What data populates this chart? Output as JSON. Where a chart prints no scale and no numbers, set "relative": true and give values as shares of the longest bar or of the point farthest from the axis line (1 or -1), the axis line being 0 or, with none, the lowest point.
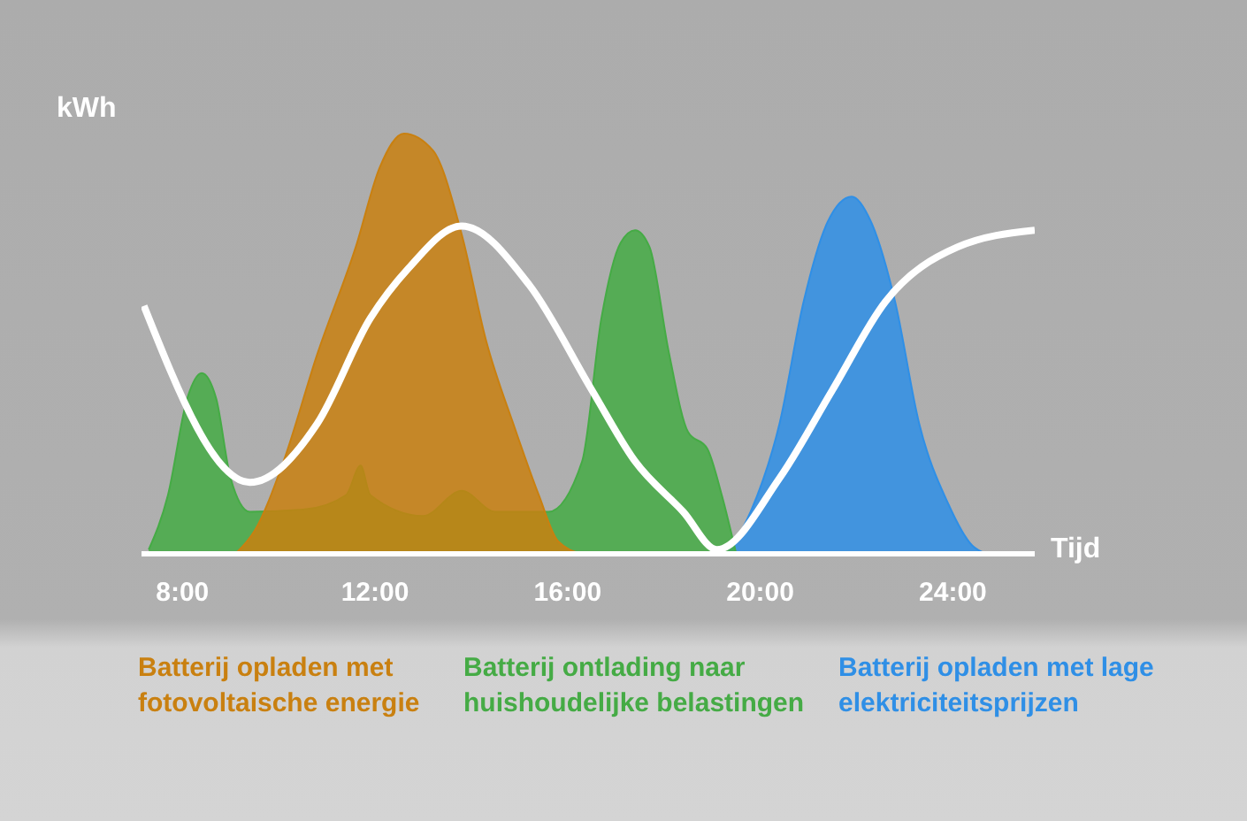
{
  "chart_data": {
    "type": "area",
    "relative": true,
    "xlabel": "Tijd",
    "ylabel": "kWh",
    "xlim": [
      7.15,
      25.7
    ],
    "xticks": [
      {
        "value": 8,
        "label": "8:00"
      },
      {
        "value": 12,
        "label": "12:00"
      },
      {
        "value": 16,
        "label": "16:00"
      },
      {
        "value": 20,
        "label": "20:00"
      },
      {
        "value": 24,
        "label": "24:00"
      }
    ],
    "legend": "bottom",
    "marker": "none",
    "series": [
      {
        "name": "Batterij opladen met fotovoltaische energie",
        "color": "#c98010",
        "x": [
          9.1,
          9.5,
          10.1,
          10.8,
          11.6,
          12.1,
          12.6,
          13.2,
          13.8,
          14.3,
          14.9,
          15.4,
          15.8,
          16.3
        ],
        "values": [
          0,
          0.055,
          0.22,
          0.475,
          0.73,
          0.92,
          1,
          0.96,
          0.76,
          0.51,
          0.3,
          0.14,
          0.03,
          0
        ]
      },
      {
        "name": "Batterij ontlading naar huishoudelijke belastingen",
        "color": "#45ab45",
        "x": [
          7.3,
          7.7,
          8.1,
          8.4,
          8.7,
          9.0,
          9.4,
          10.5,
          11.4,
          11.7,
          11.9,
          13.0,
          13.8,
          14.5,
          15.6,
          16.3,
          16.7,
          17.1,
          17.4,
          17.7,
          18.1,
          18.5,
          18.9,
          19.2,
          19.5
        ],
        "values": [
          0.01,
          0.14,
          0.37,
          0.43,
          0.37,
          0.18,
          0.1,
          0.105,
          0.14,
          0.21,
          0.14,
          0.09,
          0.15,
          0.1,
          0.1,
          0.22,
          0.56,
          0.74,
          0.77,
          0.73,
          0.48,
          0.29,
          0.25,
          0.14,
          0
        ]
      },
      {
        "name": "Batterij opladen met lage elektriciteitsprijzen",
        "color": "#2f8fe6",
        "x": [
          19.3,
          19.8,
          20.4,
          20.9,
          21.4,
          21.9,
          22.3,
          22.8,
          23.3,
          23.9,
          24.4,
          24.7
        ],
        "values": [
          0,
          0.1,
          0.31,
          0.6,
          0.79,
          0.85,
          0.79,
          0.6,
          0.31,
          0.12,
          0.02,
          0
        ]
      },
      {
        "type": "line",
        "color": "#ffffff",
        "x": [
          7.2,
          9.4,
          10.8,
          11.9,
          12.7,
          13.8,
          15.2,
          16.5,
          17.4,
          18.4,
          19.1,
          20.4,
          21.5,
          22.6,
          24.1,
          25.7
        ],
        "values": [
          0.59,
          0.17,
          0.31,
          0.56,
          0.68,
          0.78,
          0.64,
          0.39,
          0.22,
          0.1,
          0.01,
          0.18,
          0.39,
          0.6,
          0.73,
          0.77
        ]
      }
    ]
  }
}
